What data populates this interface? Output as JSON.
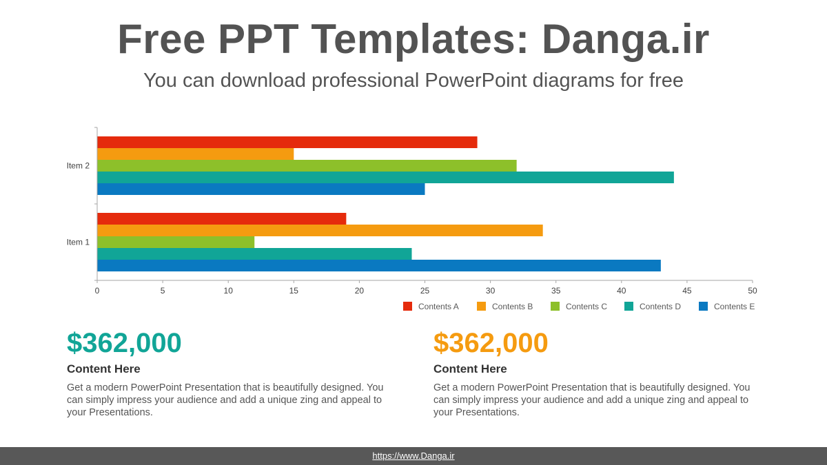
{
  "header": {
    "title": "Free PPT Templates: Danga.ir",
    "subtitle": "You can download professional PowerPoint diagrams for free"
  },
  "chart_data": {
    "type": "bar",
    "orientation": "horizontal",
    "categories": [
      "Item 1",
      "Item 2"
    ],
    "series": [
      {
        "name": "Contents A",
        "color": "#E52B0C",
        "values": [
          19,
          29
        ]
      },
      {
        "name": "Contents B",
        "color": "#F59B10",
        "values": [
          34,
          15
        ]
      },
      {
        "name": "Contents C",
        "color": "#8DC02A",
        "values": [
          12,
          32
        ]
      },
      {
        "name": "Contents D",
        "color": "#11A597",
        "values": [
          24,
          44
        ]
      },
      {
        "name": "Contents E",
        "color": "#0A79C1",
        "values": [
          43,
          25
        ]
      }
    ],
    "xlim": [
      0,
      50
    ],
    "xticks": [
      "0",
      "5",
      "10",
      "15",
      "20",
      "25",
      "30",
      "35",
      "40",
      "45",
      "50"
    ],
    "grid": false,
    "legend_position": "bottom-right"
  },
  "cards": [
    {
      "amount": "$362,000",
      "amount_color": "#11A597",
      "heading": "Content  Here",
      "body": "Get a modern PowerPoint  Presentation that is beautifully designed. You can simply impress your audience and add a unique zing and appeal to your Presentations."
    },
    {
      "amount": "$362,000",
      "amount_color": "#F59B10",
      "heading": "Content  Here",
      "body": "Get a modern PowerPoint  Presentation that is beautifully designed. You can simply impress your audience and add a unique zing and appeal to your Presentations."
    }
  ],
  "footer": {
    "link": "https://www.Danga.ir"
  }
}
